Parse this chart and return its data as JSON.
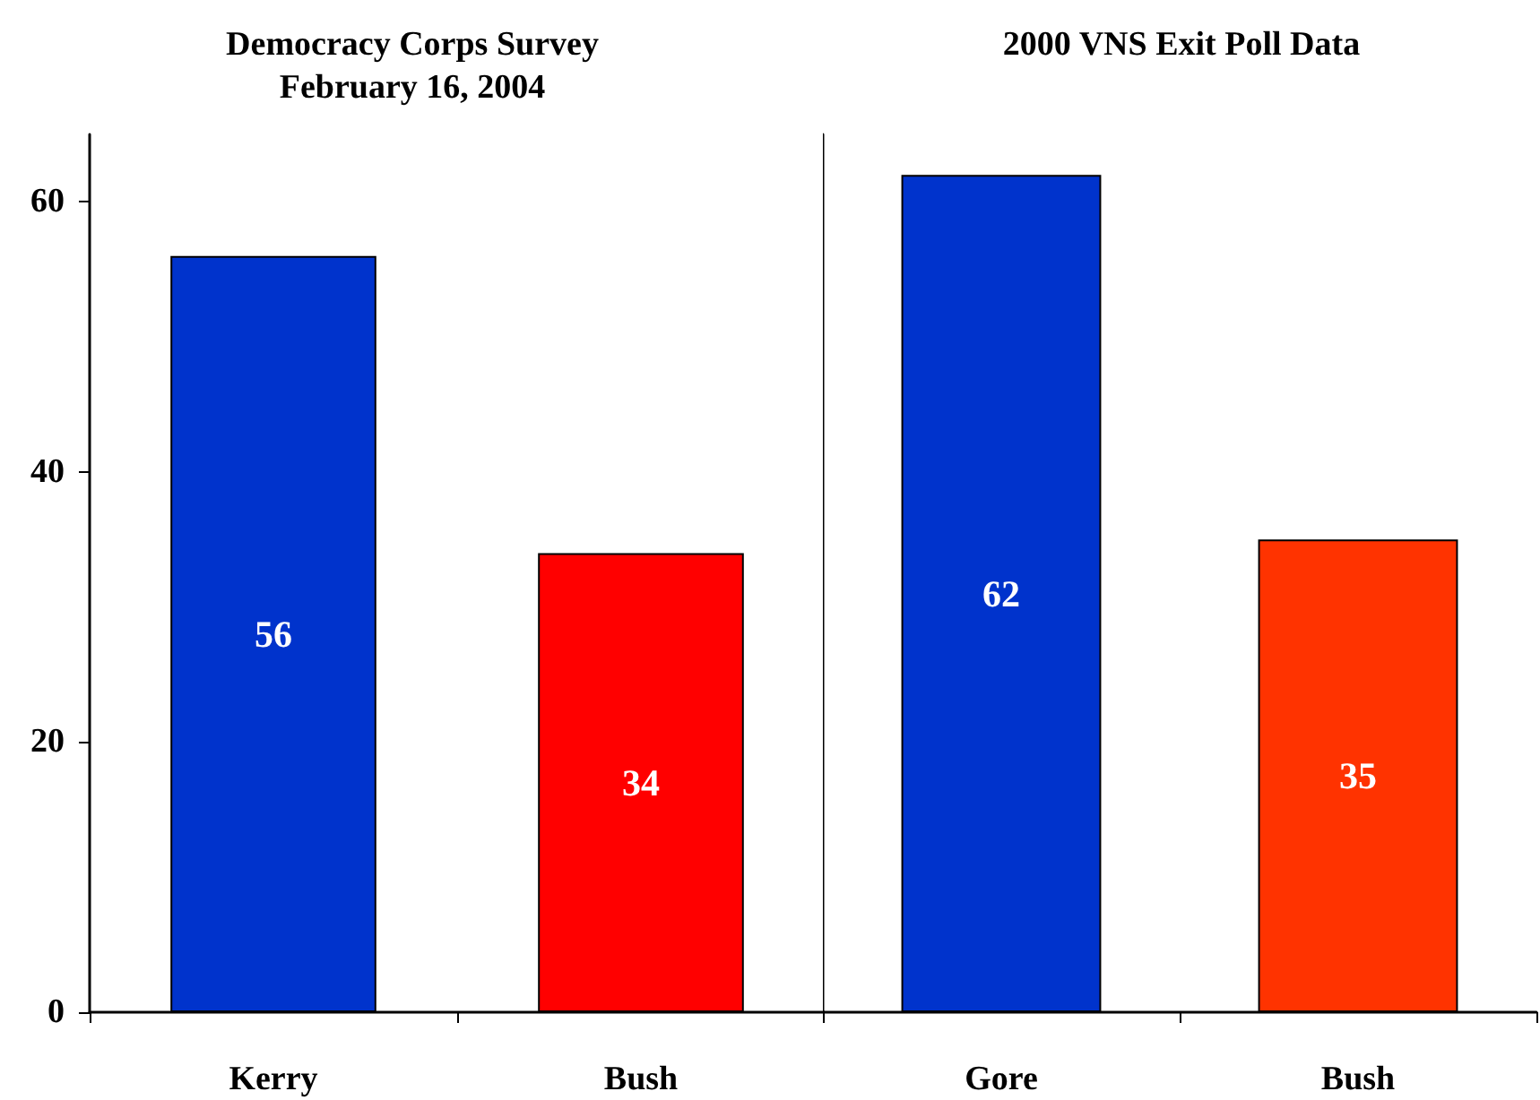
{
  "chart_data": [
    {
      "type": "bar",
      "title": "Democracy Corps Survey\nFebruary 16, 2004",
      "categories": [
        "Kerry",
        "Bush"
      ],
      "values": [
        56,
        34
      ],
      "colors": [
        "#0033cc",
        "#ff0000"
      ],
      "ylim": [
        0,
        65
      ],
      "yticks": [
        0,
        20,
        40,
        60
      ],
      "data_labels": true,
      "grid": false
    },
    {
      "type": "bar",
      "title": "2000 VNS Exit Poll Data",
      "categories": [
        "Gore",
        "Bush"
      ],
      "values": [
        62,
        35
      ],
      "colors": [
        "#0033cc",
        "#ff3300"
      ],
      "ylim": [
        0,
        65
      ],
      "yticks": [
        0,
        20,
        40,
        60
      ],
      "data_labels": true,
      "grid": false,
      "tick_labels": "x"
    }
  ]
}
